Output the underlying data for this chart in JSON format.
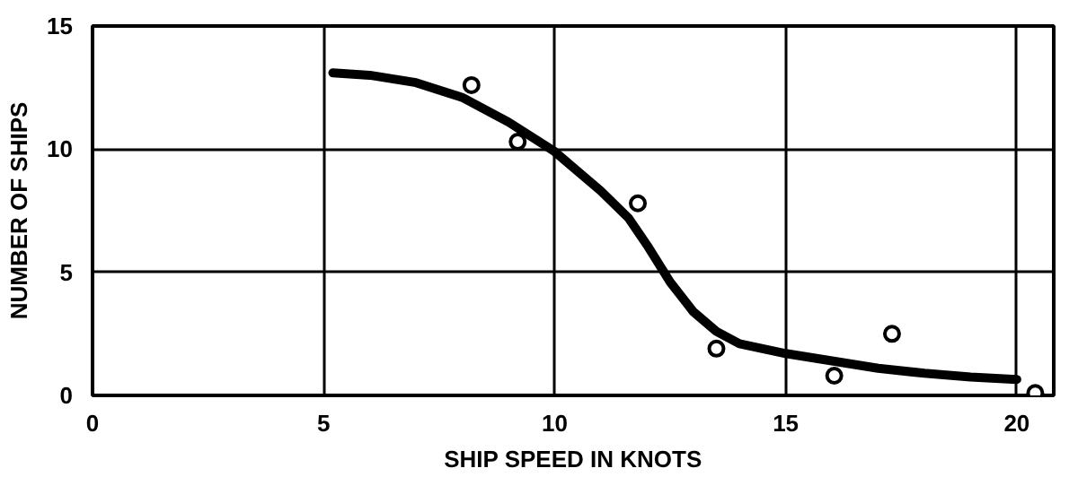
{
  "chart_data": {
    "type": "scatter",
    "xlabel": "SHIP SPEED IN KNOTS",
    "ylabel": "NUMBER OF SHIPS",
    "xlim": [
      0,
      20.8
    ],
    "ylim": [
      0,
      15
    ],
    "xticks": [
      0,
      5,
      10,
      15,
      20
    ],
    "yticks": [
      0,
      5,
      10,
      15
    ],
    "grid": true,
    "series": [
      {
        "color": "#000000",
        "marker": "circle",
        "x": [
          8.2,
          9.2,
          11.8,
          13.5,
          16.05,
          17.3,
          20.4
        ],
        "values": [
          12.6,
          10.3,
          7.8,
          1.9,
          0.8,
          2.5,
          0.1
        ]
      },
      {
        "type": "line",
        "color": "#000000",
        "x": [
          5.2,
          6,
          7,
          8,
          9,
          10,
          11,
          11.6,
          12,
          12.5,
          13,
          13.5,
          14,
          15,
          16,
          17,
          18,
          19,
          20
        ],
        "values": [
          13.1,
          13.0,
          12.7,
          12.1,
          11.1,
          9.9,
          8.3,
          7.2,
          6.1,
          4.6,
          3.4,
          2.6,
          2.1,
          1.7,
          1.4,
          1.1,
          0.9,
          0.75,
          0.65
        ]
      }
    ]
  }
}
